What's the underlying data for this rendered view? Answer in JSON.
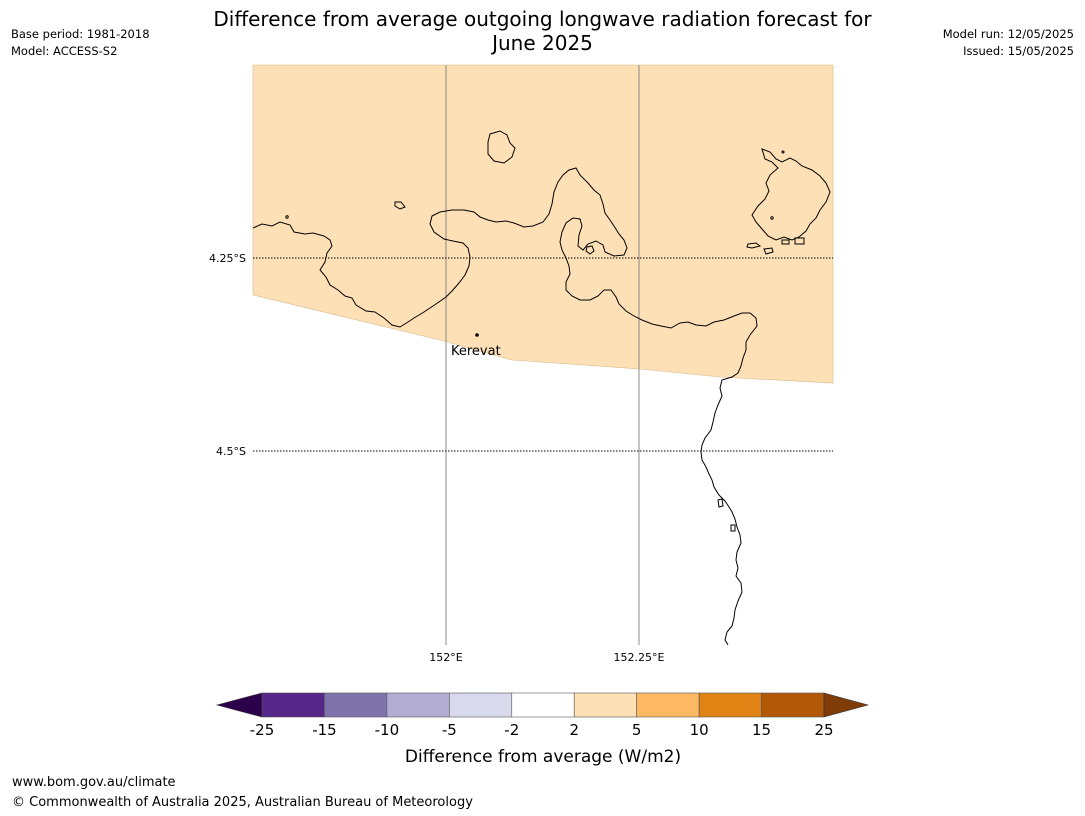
{
  "title": {
    "line1": "Difference from average outgoing longwave radiation forecast for",
    "line2": "June 2025"
  },
  "meta_left": {
    "base_period": "Base period: 1981-2018",
    "model": "Model: ACCESS-S2"
  },
  "meta_right": {
    "model_run": "Model run: 12/05/2025",
    "issued": "Issued: 15/05/2025"
  },
  "map": {
    "place_label": "Kerevat",
    "lat_labels": [
      "4.25°S",
      "4.5°S"
    ],
    "lon_labels": [
      "152°E",
      "152.25°E"
    ],
    "fill_category": "2 to 5",
    "fill_color": "#fde0b6",
    "coastline_color": "#000000"
  },
  "colorbar": {
    "title": "Difference from average (W/m2)",
    "ticks": [
      "-25",
      "-15",
      "-10",
      "-5",
      "-2",
      "2",
      "5",
      "10",
      "15",
      "25"
    ],
    "colors": [
      "#2d004b",
      "#542788",
      "#8073ac",
      "#b2abd2",
      "#d8daeb",
      "#ffffff",
      "#fee0b6",
      "#fdb863",
      "#e08214",
      "#b35806",
      "#7f3b08"
    ]
  },
  "footer": {
    "url": "www.bom.gov.au/climate",
    "copyright": "© Commonwealth of Australia 2025, Australian Bureau of Meteorology"
  }
}
